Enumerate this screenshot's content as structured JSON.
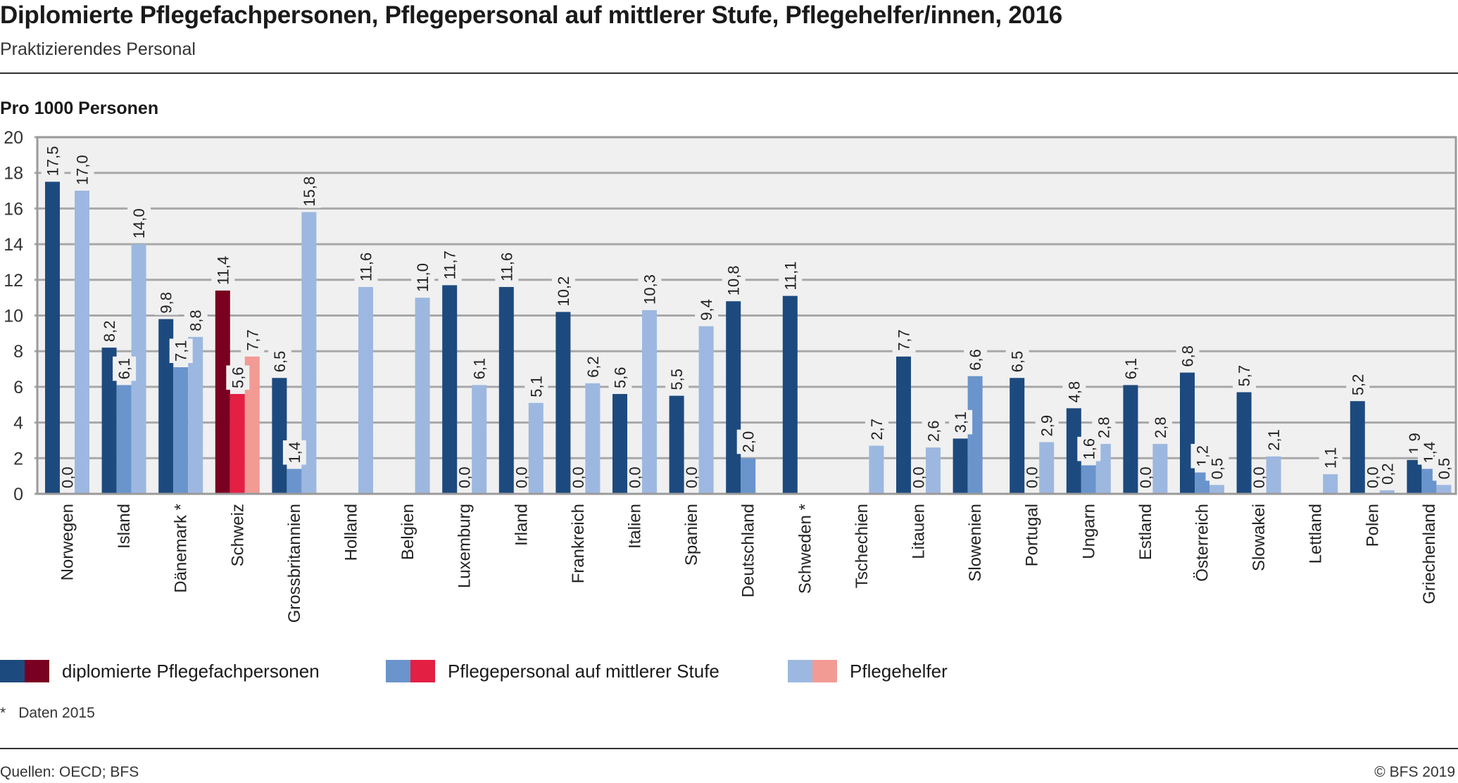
{
  "header": {
    "title": "Diplomierte Pflegefachpersonen, Pflegepersonal auf mittlerer Stufe, Pflegehelfer/innen, 2016",
    "subtitle": "Praktizierendes Personal"
  },
  "footer": {
    "note_marker": "*",
    "note_text": "Daten 2015",
    "source": "Quellen: OECD; BFS",
    "copyright": "© BFS 2019"
  },
  "colors": {
    "dipl": "#1d4a7e",
    "mittel": "#6a94cc",
    "helfer": "#9db8e0",
    "dipl_ch": "#7a0021",
    "mittel_ch": "#e31f44",
    "helfer_ch": "#f29a94",
    "plot_bg": "#f0f0f0",
    "grid": "#a8a8a8"
  },
  "chart_data": {
    "type": "bar",
    "title": "Diplomierte Pflegefachpersonen, Pflegepersonal auf mittlerer Stufe, Pflegehelfer/innen, 2016",
    "subtitle": "Praktizierendes Personal",
    "ylabel": "Pro 1000 Personen",
    "xlabel": "",
    "ylim": [
      0,
      20
    ],
    "yticks": [
      0,
      2,
      4,
      6,
      8,
      10,
      12,
      14,
      16,
      18,
      20
    ],
    "grid": true,
    "legend_position": "bottom",
    "highlight_category": "Schweiz",
    "categories": [
      "Norwegen",
      "Island",
      "Dänemark *",
      "Schweiz",
      "Grossbritannien",
      "Holland",
      "Belgien",
      "Luxemburg",
      "Irland",
      "Frankreich",
      "Italien",
      "Spanien",
      "Deutschland",
      "Schweden *",
      "Tschechien",
      "Litauen",
      "Slowenien",
      "Portugal",
      "Ungarn",
      "Estland",
      "Österreich",
      "Slowakei",
      "Lettland",
      "Polen",
      "Griechenland"
    ],
    "series": [
      {
        "name": "diplomierte Pflegefachpersonen",
        "key": "dipl",
        "values": [
          17.5,
          8.2,
          9.8,
          11.4,
          6.5,
          null,
          null,
          11.7,
          11.6,
          10.2,
          5.6,
          5.5,
          10.8,
          11.1,
          null,
          7.7,
          3.1,
          6.5,
          4.8,
          6.1,
          6.8,
          5.7,
          null,
          5.2,
          1.9
        ],
        "labels": [
          "17,5",
          "8,2",
          "9,8",
          "11,4",
          "6,5",
          null,
          null,
          "11,7",
          "11,6",
          "10,2",
          "5,6",
          "5,5",
          "10,8",
          "11,1",
          null,
          "7,7",
          "3,1",
          "6,5",
          "4,8",
          "6,1",
          "6,8",
          "5,7",
          null,
          "5,2",
          "1,9"
        ]
      },
      {
        "name": "Pflegepersonal auf mittlerer Stufe",
        "key": "mittel",
        "values": [
          0.0,
          6.1,
          7.1,
          5.6,
          1.4,
          null,
          null,
          0.0,
          0.0,
          0.0,
          0.0,
          0.0,
          2.0,
          null,
          null,
          0.0,
          6.6,
          0.0,
          1.6,
          0.0,
          1.2,
          0.0,
          null,
          0.0,
          1.4
        ],
        "labels": [
          "0,0",
          "6,1",
          "7,1",
          "5,6",
          "1,4",
          null,
          null,
          "0,0",
          "0,0",
          "0,0",
          "0,0",
          "0,0",
          "2,0",
          null,
          null,
          "0,0",
          "6,6",
          "0,0",
          "1,6",
          "0,0",
          "1,2",
          "0,0",
          null,
          "0,0",
          "1,4"
        ]
      },
      {
        "name": "Pflegehelfer",
        "key": "helfer",
        "values": [
          17.0,
          14.0,
          8.8,
          7.7,
          15.8,
          11.6,
          11.0,
          6.1,
          5.1,
          6.2,
          10.3,
          9.4,
          null,
          null,
          2.7,
          2.6,
          null,
          2.9,
          2.8,
          2.8,
          0.5,
          2.1,
          1.1,
          0.2,
          0.5
        ],
        "labels": [
          "17,0",
          "14,0",
          "8,8",
          "7,7",
          "15,8",
          "11,6",
          "11,0",
          "6,1",
          "5,1",
          "6,2",
          "10,3",
          "9,4",
          null,
          null,
          "2,7",
          "2,6",
          null,
          "2,9",
          "2,8",
          "2,8",
          "0,5",
          "2,1",
          "1,1",
          "0,2",
          "0,5"
        ]
      }
    ]
  }
}
